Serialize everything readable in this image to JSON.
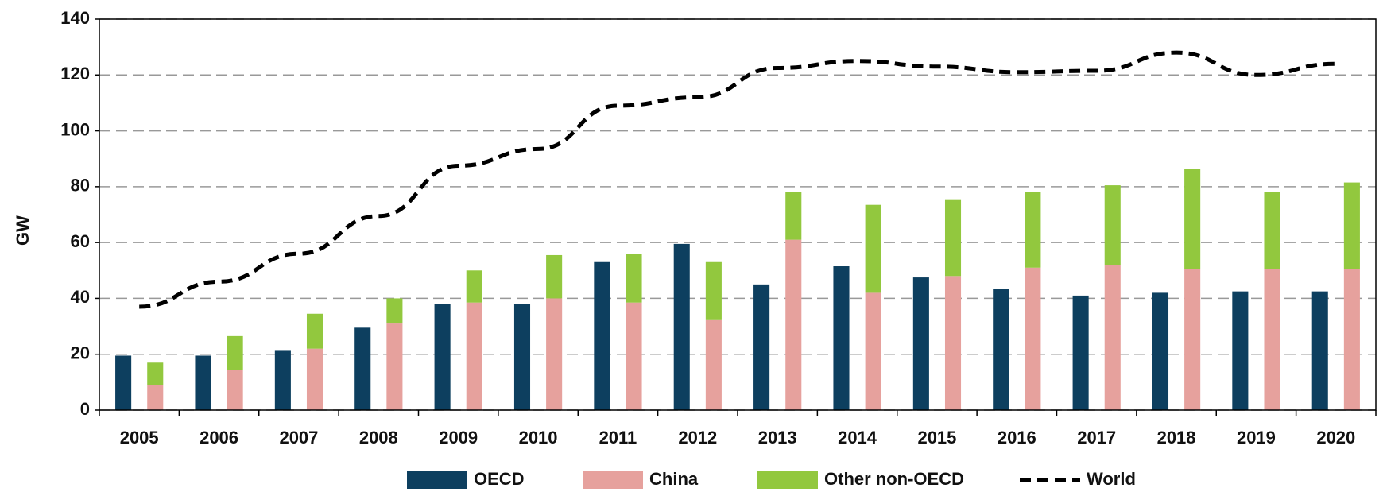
{
  "chart_data": {
    "type": "bar",
    "ylabel": "GW",
    "categories": [
      "2005",
      "2006",
      "2007",
      "2008",
      "2009",
      "2010",
      "2011",
      "2012",
      "2013",
      "2014",
      "2015",
      "2016",
      "2017",
      "2018",
      "2019",
      "2020"
    ],
    "series": [
      {
        "name": "OECD",
        "color": "#0d3f5f",
        "values": [
          19.5,
          19.5,
          21.5,
          29.5,
          38,
          38,
          53,
          59.5,
          45,
          51.5,
          47.5,
          43.5,
          41,
          42,
          42.5,
          42.5
        ]
      },
      {
        "name": "China",
        "color": "#e6a19d",
        "values": [
          9,
          14.5,
          22,
          31,
          38.5,
          40,
          38.5,
          32.5,
          61,
          42,
          48,
          51,
          52,
          50.5,
          50.5,
          50.5
        ]
      },
      {
        "name": "Other non-OECD",
        "color": "#92c83e",
        "values": [
          8,
          12,
          12.5,
          9,
          11.5,
          15.5,
          17.5,
          20.5,
          17,
          31.5,
          27.5,
          27,
          28.5,
          36,
          27.5,
          31
        ]
      },
      {
        "name": "World",
        "type": "line",
        "color": "#000000",
        "values": [
          37,
          46,
          56,
          69.5,
          87.5,
          93.5,
          109,
          112,
          122.5,
          125,
          123,
          121,
          121.5,
          128,
          120,
          124
        ]
      }
    ],
    "ylim": [
      0,
      140
    ],
    "yticks": [
      0,
      20,
      40,
      60,
      80,
      100,
      120,
      140
    ],
    "grid": true
  }
}
